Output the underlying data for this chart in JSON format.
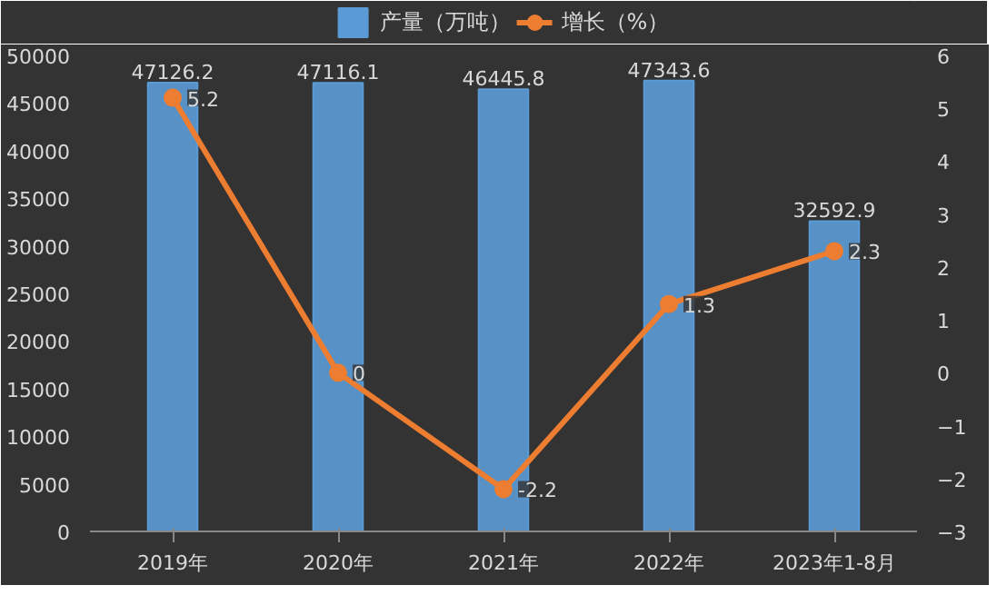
{
  "chart_data": {
    "type": "bar",
    "categories": [
      "2019年",
      "2020年",
      "2021年",
      "2022年",
      "2023年1-8月"
    ],
    "series": [
      {
        "name": "产量（万吨）",
        "color": "#5b9bd5",
        "values": [
          47126.2,
          47116.1,
          46445.8,
          47343.6,
          32592.9
        ]
      },
      {
        "name": "增长（%）",
        "type": "line",
        "axis": "y2",
        "color": "#ed7d31",
        "values": [
          5.2,
          0,
          -2.2,
          1.3,
          2.3
        ]
      }
    ],
    "ylim": [
      0,
      50000
    ],
    "yticks": [
      0,
      5000,
      10000,
      15000,
      20000,
      25000,
      30000,
      35000,
      40000,
      45000,
      50000
    ],
    "y2lim": [
      -3,
      6
    ],
    "y2ticks": [
      -3,
      -2,
      -1,
      0,
      1,
      2,
      3,
      4,
      5,
      6
    ],
    "data_labels": true,
    "legend": "top",
    "grid": false,
    "marker": "circle",
    "line_style": "solid"
  }
}
